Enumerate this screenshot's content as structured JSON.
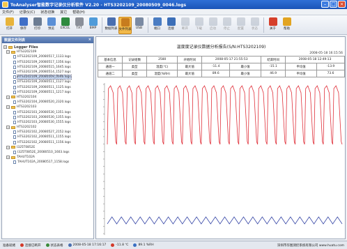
{
  "window": {
    "title": "ToAnalyser智能数字记录仪分析软件 V2.20 - HTS3202109_20080509_0046.logs"
  },
  "menu": [
    "文件(F)",
    "记录仪(C)",
    "状态切换",
    "其它",
    "帮助(H)"
  ],
  "toolbar": {
    "buttons": [
      {
        "label": "打开",
        "icon": "open-folder-icon",
        "color": "#e7b33a",
        "state": "normal"
      },
      {
        "label": "保存",
        "icon": "save-disk-icon",
        "color": "#3f6fc7",
        "state": "normal"
      },
      {
        "label": "打印",
        "icon": "printer-icon",
        "color": "#6b7c93",
        "state": "normal"
      },
      {
        "label": "预览",
        "icon": "preview-icon",
        "color": "#5a8fd6",
        "state": "normal"
      },
      {
        "label": "EXCEL",
        "icon": "excel-icon",
        "color": "#2e8a3f",
        "state": "normal"
      },
      {
        "label": "TXT",
        "icon": "txt-icon",
        "color": "#8a8f99",
        "state": "normal"
      },
      {
        "label": "BMP",
        "icon": "bmp-icon",
        "color": "#4f9bd9",
        "state": "normal"
      },
      {
        "label": "数据列表",
        "icon": "data-list-icon",
        "color": "#4a6fb0",
        "state": "normal"
      },
      {
        "label": "文件列表",
        "icon": "file-list-icon",
        "color": "#c77c1e",
        "state": "active"
      },
      {
        "label": "USB",
        "icon": "usb-icon",
        "color": "#7a8aa3",
        "state": "normal"
      },
      {
        "label": "端口",
        "icon": "port-icon",
        "color": "#4a7cc2",
        "state": "normal"
      },
      {
        "label": "连接",
        "icon": "connect-icon",
        "color": "#3c6fb8",
        "state": "normal"
      },
      {
        "label": "断开",
        "icon": "disconnect-icon",
        "color": "#8d97a8",
        "state": "disabled"
      },
      {
        "label": "下载",
        "icon": "download-icon",
        "color": "#8d97a8",
        "state": "disabled"
      },
      {
        "label": "启动",
        "icon": "start-icon",
        "color": "#8d97a8",
        "state": "disabled"
      },
      {
        "label": "停止",
        "icon": "stop-icon",
        "color": "#8d97a8",
        "state": "disabled"
      },
      {
        "label": "配置",
        "icon": "config-icon",
        "color": "#8d97a8",
        "state": "disabled"
      },
      {
        "label": "状态",
        "icon": "status-icon",
        "color": "#8d97a8",
        "state": "disabled"
      },
      {
        "label": "关于",
        "icon": "about-icon",
        "color": "#d6402b",
        "state": "normal"
      },
      {
        "label": "帮助",
        "icon": "help-icon",
        "color": "#e2a421",
        "state": "normal"
      }
    ]
  },
  "tree": {
    "header": "数据文件列表",
    "pin": "×",
    "root": "Logger Files",
    "groups": [
      {
        "name": "HTS3202109",
        "files": [
          "HTS3202109_20080517_1133.logs",
          "HTS3202109_20080517_1356.logs",
          "HTS3202109_20080515_1645.logs",
          "HTS3202109_20080514_1527.logs",
          "HTS3202109_20080509_0046.logs",
          "HTS3202109_20080511_1127.logs",
          "HTS3202109_20080511_1125.logs",
          "HTS3202109_20080511_1217.logs"
        ]
      },
      {
        "name": "HTS3202104",
        "files": [
          "HTS3202104_20080520_2320.logs"
        ]
      },
      {
        "name": "HTS3202103",
        "files": [
          "HTS3202103_20080530_1351.logs",
          "HTS3202103_20080530_1355.logs",
          "HTS3202103_20080530_1555.logs"
        ]
      },
      {
        "name": "HTS3202102",
        "files": [
          "HTS3202102_20080527_2152.logs",
          "HTS3202102_20080511_1155.logs",
          "HTS3202102_20080511_1156.logs"
        ]
      },
      {
        "name": "I325T0852E",
        "files": [
          "I325T0852E_20080510_1603.logs"
        ]
      },
      {
        "name": "TAHUT102A",
        "files": [
          "TAHUT102A_20080517_1158.logs"
        ]
      }
    ],
    "selected": "HTS3202109_20080509_0046.logs"
  },
  "report": {
    "title": "温度度记录仪数据分析报告(S/N:HTS3202109)",
    "date": "2008-05-18 16:15:56",
    "rows": [
      [
        "基本信息",
        "记录组数",
        "2580",
        "开始时间",
        "2008-05-17 21:55:53",
        "结束时间",
        "2008-05-18 12:49:13"
      ],
      [
        "通道一",
        "类型",
        "温度(℃)",
        "最大值",
        "-11.4",
        "最小值",
        "-15.1",
        "平均值",
        "-13.9"
      ],
      [
        "通道二",
        "类型",
        "湿度(%RH)",
        "最大值",
        "89.6",
        "最小值",
        "46.9",
        "平均值",
        "73.6"
      ]
    ]
  },
  "chart_data": {
    "type": "line",
    "title": "",
    "xlabel": "",
    "ylabel": "",
    "grid": false,
    "series": [
      {
        "color": "#e0303a",
        "cycles": 25,
        "min": 46.9,
        "max": 89.6
      },
      {
        "color": "#3a4aa8",
        "cycles": 25,
        "min": -15.1,
        "max": -11.4
      }
    ]
  },
  "status": {
    "ready": "准备就绪",
    "connection": "连接已断开",
    "mode": "状态表格",
    "time": "2008-05-18 17:16:17",
    "temp": "-11.8 ℃",
    "humidity": "89.1 %RH",
    "company": "深圳市华图测控系统有限公司 www.huatu.com"
  },
  "colors": {
    "titlebar": "#1f5fc8",
    "active_button": "#f2b94a",
    "humidity_line": "#e0303a",
    "temperature_line": "#3a4aa8"
  }
}
